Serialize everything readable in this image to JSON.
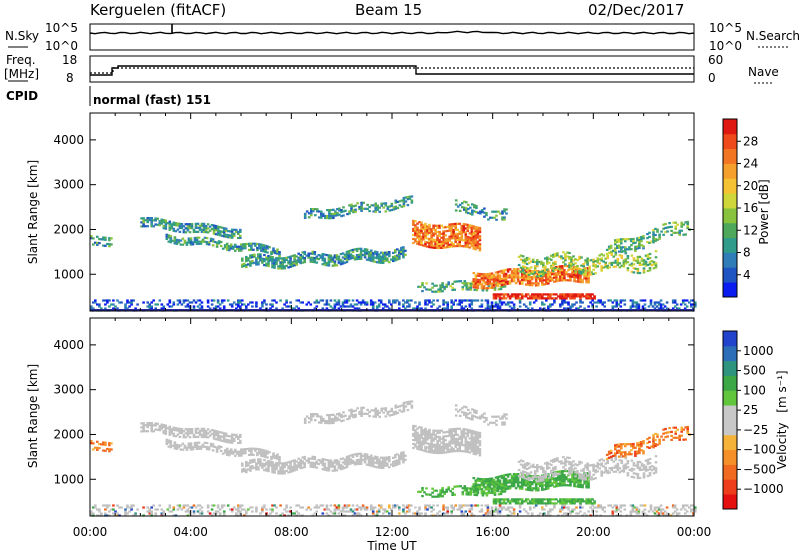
{
  "header": {
    "station": "Kerguelen (fitACF)",
    "beam": "Beam 15",
    "date": "02/Dec/2017"
  },
  "noise_panel": {
    "left_label": "N.Sky",
    "right_label": "N.Search",
    "left_ticks": [
      "10^5",
      "10^0"
    ],
    "right_ticks": [
      "10^5",
      "10^0"
    ]
  },
  "freq_panel": {
    "left_label_line1": "Freq.",
    "left_label_line2": "[MHz]",
    "right_label": "Nave",
    "left_ticks": [
      "18",
      "8"
    ],
    "right_ticks": [
      "60",
      "0"
    ]
  },
  "cpid": {
    "label": "CPID",
    "value": "normal (fast) 151"
  },
  "colors": {
    "power_scale": [
      "#0b1cf0",
      "#1f55c2",
      "#2e7db8",
      "#2f9b8a",
      "#4da85c",
      "#89c23c",
      "#cfd63a",
      "#f4c232",
      "#f5a02c",
      "#f27622",
      "#ee4a1b",
      "#e01812"
    ],
    "velocity_scale": [
      "#e3100f",
      "#ee3d1a",
      "#f06a1f",
      "#f59028",
      "#f6b33a",
      "#c8c8c8",
      "#c8c8c8",
      "#62c63c",
      "#3ba747",
      "#2e9480",
      "#2c6eb7",
      "#2244cc"
    ],
    "ground_scatter": "#c0c0c0"
  },
  "chart_data": [
    {
      "type": "heatmap",
      "name": "power",
      "ylabel": "Slant Range [km]",
      "y_ticks": [
        "1000",
        "2000",
        "3000",
        "4000"
      ],
      "ylim": [
        180,
        4600
      ],
      "x_tick_labels": [
        "00:00",
        "04:00",
        "08:00",
        "12:00",
        "16:00",
        "20:00",
        "00:00"
      ],
      "xlim_hours": [
        0,
        24
      ],
      "colorbar_label": "Power [dB]",
      "colorbar_ticks": [
        "4",
        "8",
        "12",
        "16",
        "20",
        "24",
        "28"
      ],
      "colorbar_range": [
        0,
        30
      ]
    },
    {
      "type": "heatmap",
      "name": "velocity",
      "ylabel": "Slant Range [km]",
      "y_ticks": [
        "1000",
        "2000",
        "3000",
        "4000"
      ],
      "ylim": [
        180,
        4600
      ],
      "x_tick_labels": [
        "00:00",
        "04:00",
        "08:00",
        "12:00",
        "16:00",
        "20:00",
        "00:00"
      ],
      "xlabel": "Time UT",
      "xlim_hours": [
        0,
        24
      ],
      "colorbar_label": "Velocity",
      "colorbar_unit": "[m s⁻¹]",
      "colorbar_ticks": [
        "1000",
        "500",
        "100",
        "25",
        "−25",
        "−100",
        "−500",
        "−1000"
      ]
    }
  ]
}
